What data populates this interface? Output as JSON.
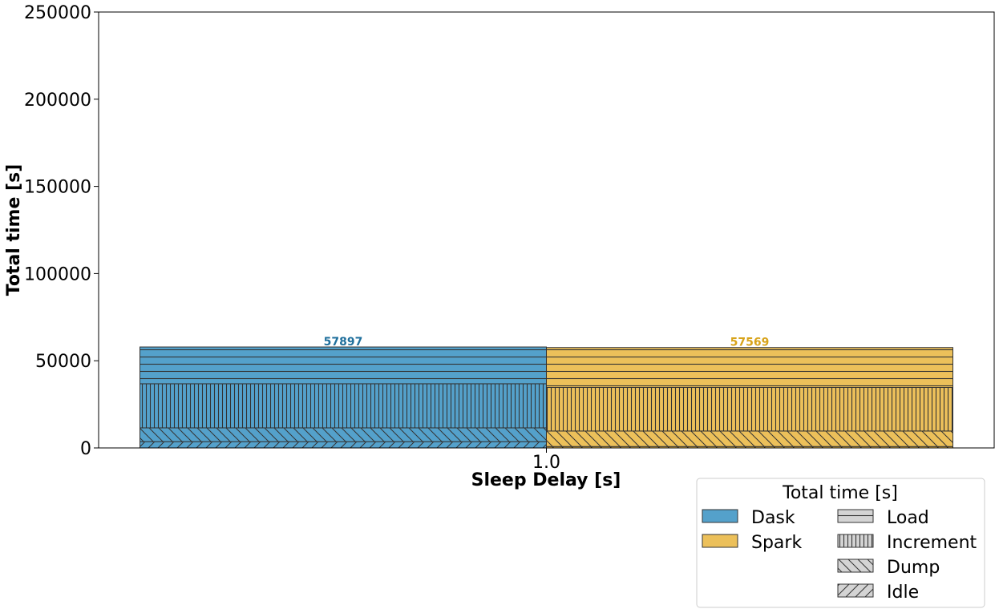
{
  "chart_data": {
    "type": "bar",
    "stacked": true,
    "title": "",
    "xlabel": "Sleep Delay [s]",
    "ylabel": "Total time [s]",
    "ylim": [
      0,
      250000
    ],
    "yticks": [
      0,
      50000,
      100000,
      150000,
      200000,
      250000
    ],
    "categories": [
      "1.0"
    ],
    "grid": false,
    "series": [
      {
        "name": "Dask",
        "color": "#54a1cb",
        "label_color": "#1f6f9c",
        "total": 57897,
        "total_label": "57897",
        "components": [
          {
            "name": "Idle",
            "value": 3600
          },
          {
            "name": "Dump",
            "value": 7900
          },
          {
            "name": "Increment",
            "value": 25300
          },
          {
            "name": "Load",
            "value": 21097
          }
        ]
      },
      {
        "name": "Spark",
        "color": "#ecc05a",
        "label_color": "#d8a31a",
        "total": 57569,
        "total_label": "57569",
        "components": [
          {
            "name": "Idle",
            "value": 800
          },
          {
            "name": "Dump",
            "value": 8900
          },
          {
            "name": "Increment",
            "value": 25000
          },
          {
            "name": "Load",
            "value": 22869
          }
        ]
      }
    ],
    "legend": {
      "title": "Total time [s]",
      "position": "bottom-right",
      "colors": [
        {
          "name": "Dask",
          "color": "#54a1cb"
        },
        {
          "name": "Spark",
          "color": "#ecc05a"
        }
      ],
      "hatches": [
        {
          "name": "Load",
          "pattern": "horizontal"
        },
        {
          "name": "Increment",
          "pattern": "vertical"
        },
        {
          "name": "Dump",
          "pattern": "backslash"
        },
        {
          "name": "Idle",
          "pattern": "slash"
        }
      ]
    }
  }
}
